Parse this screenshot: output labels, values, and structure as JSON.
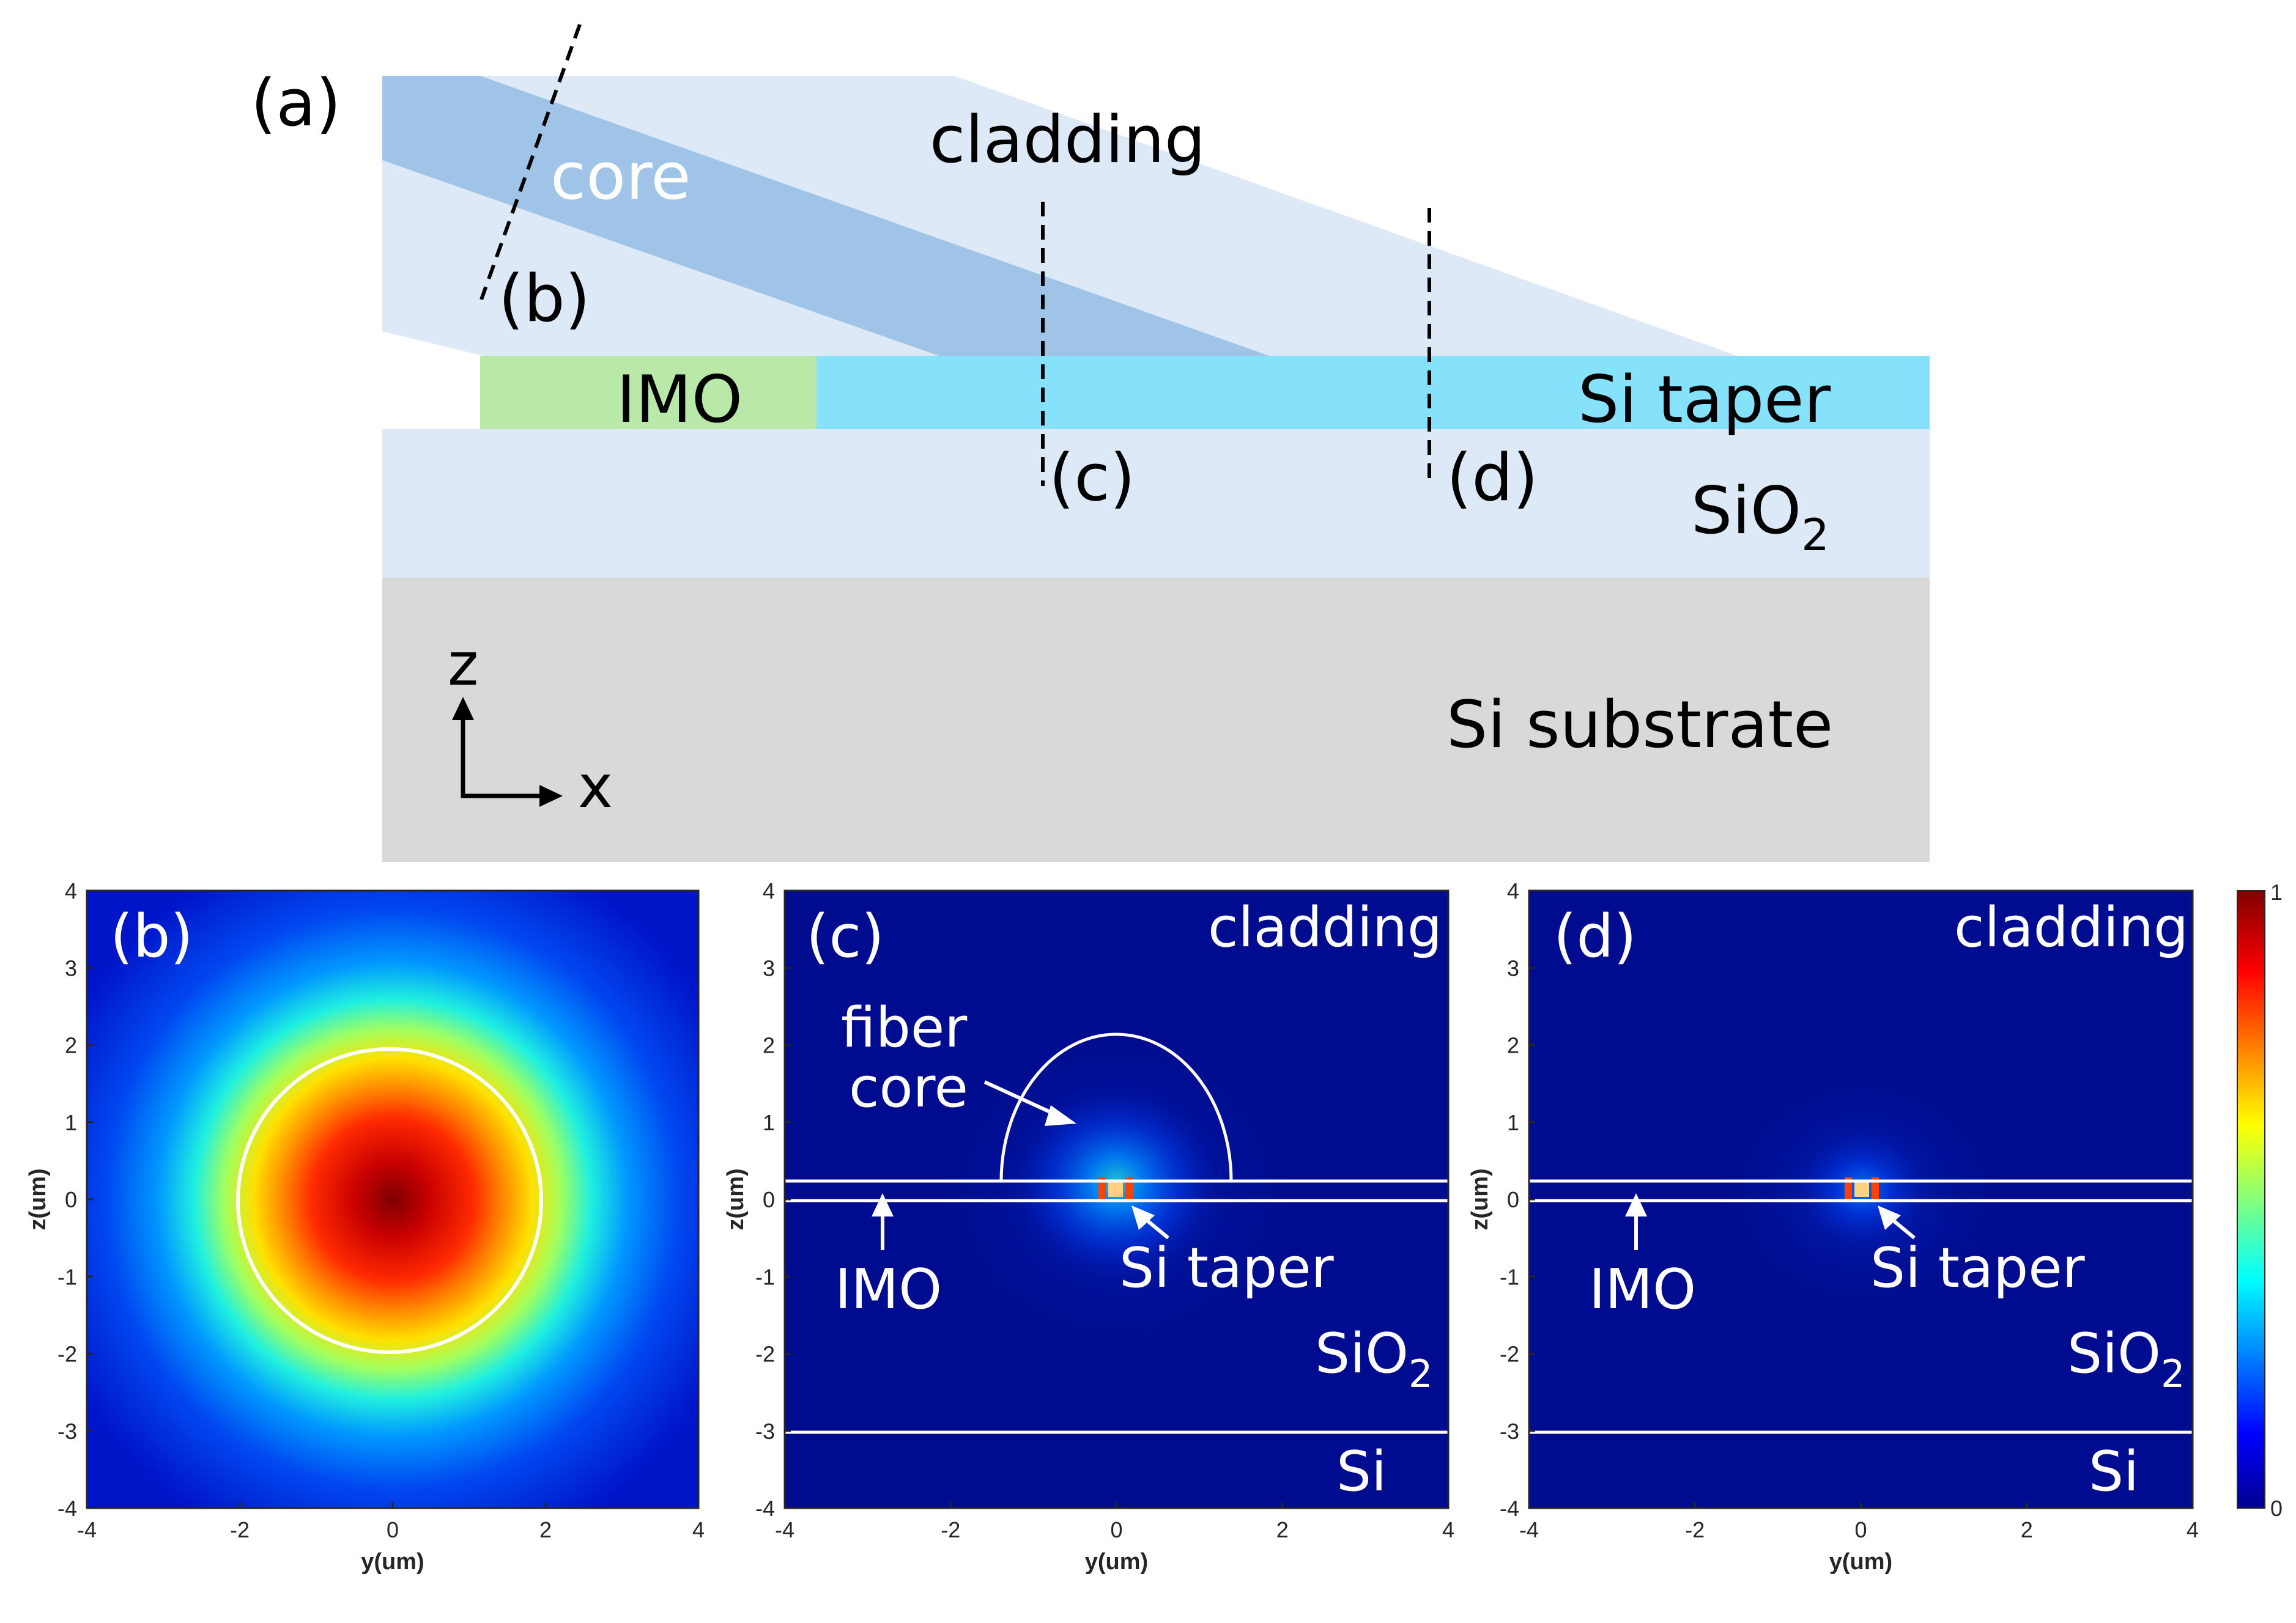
{
  "figure": {
    "panel_a": {
      "label": "(a)",
      "core": "core",
      "cladding": "cladding",
      "cut_b": "(b)",
      "cut_c": "(c)",
      "cut_d": "(d)",
      "imo": "IMO",
      "si_taper": "Si taper",
      "sio2_main": "SiO",
      "sio2_sub": "2",
      "substrate": "Si substrate",
      "axis_z": "z",
      "axis_x": "x"
    },
    "panel_b": {
      "label": "(b)"
    },
    "panel_c": {
      "label": "(c)",
      "cladding": "cladding",
      "fiber": "fiber",
      "core": "core",
      "imo": "IMO",
      "si_taper": "Si taper",
      "sio2_main": "SiO",
      "sio2_sub": "2",
      "si": "Si"
    },
    "panel_d": {
      "label": "(d)",
      "cladding": "cladding",
      "imo": "IMO",
      "si_taper": "Si taper",
      "sio2_main": "SiO",
      "sio2_sub": "2",
      "si": "Si"
    },
    "axes": {
      "xlabel": "y(um)",
      "ylabel": "z(um)",
      "x_ticks": [
        "-4",
        "-2",
        "0",
        "2",
        "4"
      ],
      "y_ticks": [
        "4",
        "3",
        "2",
        "1",
        "0",
        "-1",
        "-2",
        "-3",
        "-4"
      ]
    },
    "colorbar": {
      "max": "1",
      "min": "0"
    },
    "colors": {
      "cladding": "#dde9f6",
      "core": "#a0c4e8",
      "imo": "#b9e8a9",
      "si_taper": "#86e2fb",
      "sio2": "#dde9f6",
      "substrate": "#d9d9d9",
      "field_bg": "#000c8f"
    }
  }
}
